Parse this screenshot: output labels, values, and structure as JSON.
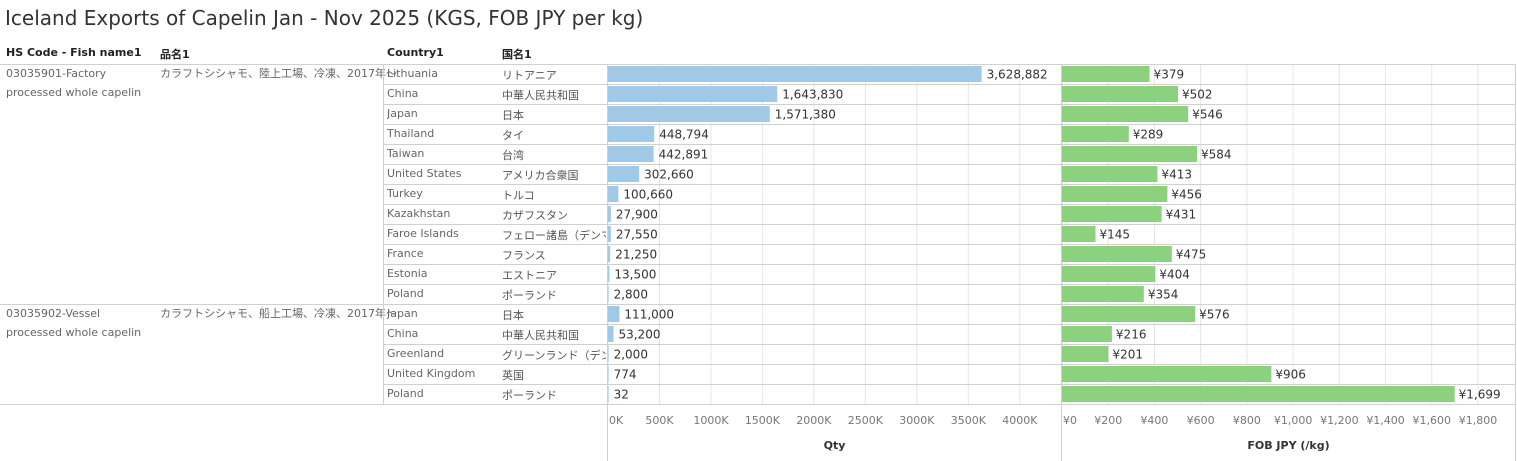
{
  "title": "Iceland Exports of Capelin Jan - Nov 2025 (KGS, FOB JPY per kg)",
  "headers": {
    "hs_code": "HS Code - Fish name1",
    "hinmei": "品名1",
    "country": "Country1",
    "kokumei": "国名1"
  },
  "groups": [
    {
      "hs_code_line1": "03035901-Factory",
      "hs_code_line2": "processed whole capelin",
      "hinmei": "カラフトシシャモ、陸上工場、冷凍、2017年～"
    },
    {
      "hs_code_line1": "03035902-Vessel",
      "hs_code_line2": "processed whole capelin",
      "hinmei": "カラフトシシャモ、船上工場、冷凍、2017年～"
    }
  ],
  "colors": {
    "qty_bar": "#9fc9e6",
    "fob_bar": "#8cd17d",
    "grid": "#e6e6e6",
    "divider": "#d0d0d0"
  },
  "chart_data": [
    {
      "type": "bar",
      "orientation": "horizontal",
      "xlabel": "Qty",
      "xlim": [
        0,
        4400000
      ],
      "tick_values": [
        0,
        500000,
        1000000,
        1500000,
        2000000,
        2500000,
        3000000,
        3500000,
        4000000
      ],
      "tick_labels": [
        "0K",
        "500K",
        "1000K",
        "1500K",
        "2000K",
        "2500K",
        "3000K",
        "3500K",
        "4000K"
      ],
      "rows": [
        {
          "group": 0,
          "country": "Lithuania",
          "country_jp": "リトアニア",
          "value": 3628882,
          "label": "3,628,882"
        },
        {
          "group": 0,
          "country": "China",
          "country_jp": "中華人民共和国",
          "value": 1643830,
          "label": "1,643,830"
        },
        {
          "group": 0,
          "country": "Japan",
          "country_jp": "日本",
          "value": 1571380,
          "label": "1,571,380"
        },
        {
          "group": 0,
          "country": "Thailand",
          "country_jp": "タイ",
          "value": 448794,
          "label": "448,794"
        },
        {
          "group": 0,
          "country": "Taiwan",
          "country_jp": "台湾",
          "value": 442891,
          "label": "442,891"
        },
        {
          "group": 0,
          "country": "United States",
          "country_jp": "アメリカ合衆国",
          "value": 302660,
          "label": "302,660"
        },
        {
          "group": 0,
          "country": "Turkey",
          "country_jp": "トルコ",
          "value": 100660,
          "label": "100,660"
        },
        {
          "group": 0,
          "country": "Kazakhstan",
          "country_jp": "カザフスタン",
          "value": 27900,
          "label": "27,900"
        },
        {
          "group": 0,
          "country": "Faroe Islands",
          "country_jp": "フェロー諸島（デンマ...",
          "value": 27550,
          "label": "27,550"
        },
        {
          "group": 0,
          "country": "France",
          "country_jp": "フランス",
          "value": 21250,
          "label": "21,250"
        },
        {
          "group": 0,
          "country": "Estonia",
          "country_jp": "エストニア",
          "value": 13500,
          "label": "13,500"
        },
        {
          "group": 0,
          "country": "Poland",
          "country_jp": "ポーランド",
          "value": 2800,
          "label": "2,800"
        },
        {
          "group": 1,
          "country": "Japan",
          "country_jp": "日本",
          "value": 111000,
          "label": "111,000"
        },
        {
          "group": 1,
          "country": "China",
          "country_jp": "中華人民共和国",
          "value": 53200,
          "label": "53,200"
        },
        {
          "group": 1,
          "country": "Greenland",
          "country_jp": "グリーンランド（デン...",
          "value": 2000,
          "label": "2,000"
        },
        {
          "group": 1,
          "country": "United Kingdom",
          "country_jp": "英国",
          "value": 774,
          "label": "774"
        },
        {
          "group": 1,
          "country": "Poland",
          "country_jp": "ポーランド",
          "value": 32,
          "label": "32"
        }
      ]
    },
    {
      "type": "bar",
      "orientation": "horizontal",
      "xlabel": "FOB JPY (/kg)",
      "xlim": [
        0,
        1960
      ],
      "tick_values": [
        0,
        200,
        400,
        600,
        800,
        1000,
        1200,
        1400,
        1600,
        1800
      ],
      "tick_labels": [
        "¥0",
        "¥200",
        "¥400",
        "¥600",
        "¥800",
        "¥1,000",
        "¥1,200",
        "¥1,400",
        "¥1,600",
        "¥1,800"
      ],
      "rows": [
        {
          "value": 379,
          "label": "¥379"
        },
        {
          "value": 502,
          "label": "¥502"
        },
        {
          "value": 546,
          "label": "¥546"
        },
        {
          "value": 289,
          "label": "¥289"
        },
        {
          "value": 584,
          "label": "¥584"
        },
        {
          "value": 413,
          "label": "¥413"
        },
        {
          "value": 456,
          "label": "¥456"
        },
        {
          "value": 431,
          "label": "¥431"
        },
        {
          "value": 145,
          "label": "¥145"
        },
        {
          "value": 475,
          "label": "¥475"
        },
        {
          "value": 404,
          "label": "¥404"
        },
        {
          "value": 354,
          "label": "¥354"
        },
        {
          "value": 576,
          "label": "¥576"
        },
        {
          "value": 216,
          "label": "¥216"
        },
        {
          "value": 201,
          "label": "¥201"
        },
        {
          "value": 906,
          "label": "¥906"
        },
        {
          "value": 1699,
          "label": "¥1,699"
        }
      ]
    }
  ]
}
